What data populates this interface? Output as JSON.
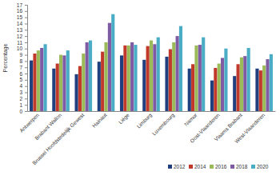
{
  "chart_data": {
    "type": "bar",
    "y_label": "Percentage",
    "categories": [
      "Antwerpen",
      "Brabant Wallon",
      "Brussel Hoofdstedelijk Gewest",
      "Hainaut",
      "Liège",
      "Limburg",
      "Luxembourg",
      "Namur",
      "Oost-Vlaanderen",
      "Vlaams Brabant",
      "West-Vlaanderen"
    ],
    "series": [
      {
        "name": "2012",
        "color": "#1f3f7f",
        "values": [
          8.1,
          6.8,
          5.9,
          7.9,
          8.9,
          8.2,
          8.7,
          6.8,
          4.9,
          5.6,
          6.8
        ]
      },
      {
        "name": "2014",
        "color": "#c0392b",
        "values": [
          9.2,
          7.6,
          7.2,
          9.5,
          10.5,
          10.4,
          9.9,
          7.5,
          6.9,
          7.5,
          6.5
        ]
      },
      {
        "name": "2016",
        "color": "#9bbb59",
        "values": [
          9.7,
          9.0,
          9.2,
          11.0,
          10.5,
          11.3,
          11.0,
          10.5,
          7.6,
          8.6,
          7.3
        ]
      },
      {
        "name": "2018",
        "color": "#7e5ba3",
        "values": [
          10.1,
          8.9,
          11.0,
          14.1,
          11.0,
          10.7,
          12.0,
          10.6,
          8.5,
          8.8,
          8.3
        ]
      },
      {
        "name": "2020",
        "color": "#4bacc6",
        "values": [
          10.7,
          9.7,
          11.3,
          15.5,
          10.6,
          11.8,
          13.6,
          11.8,
          10.0,
          10.1,
          9.1
        ]
      }
    ],
    "ylim": [
      0,
      17
    ],
    "yticks": [
      0,
      1,
      2,
      3,
      4,
      5,
      6,
      7,
      8,
      9,
      10,
      11,
      12,
      13,
      14,
      15,
      16,
      17
    ],
    "grid": false,
    "legend": "bottom-right"
  }
}
